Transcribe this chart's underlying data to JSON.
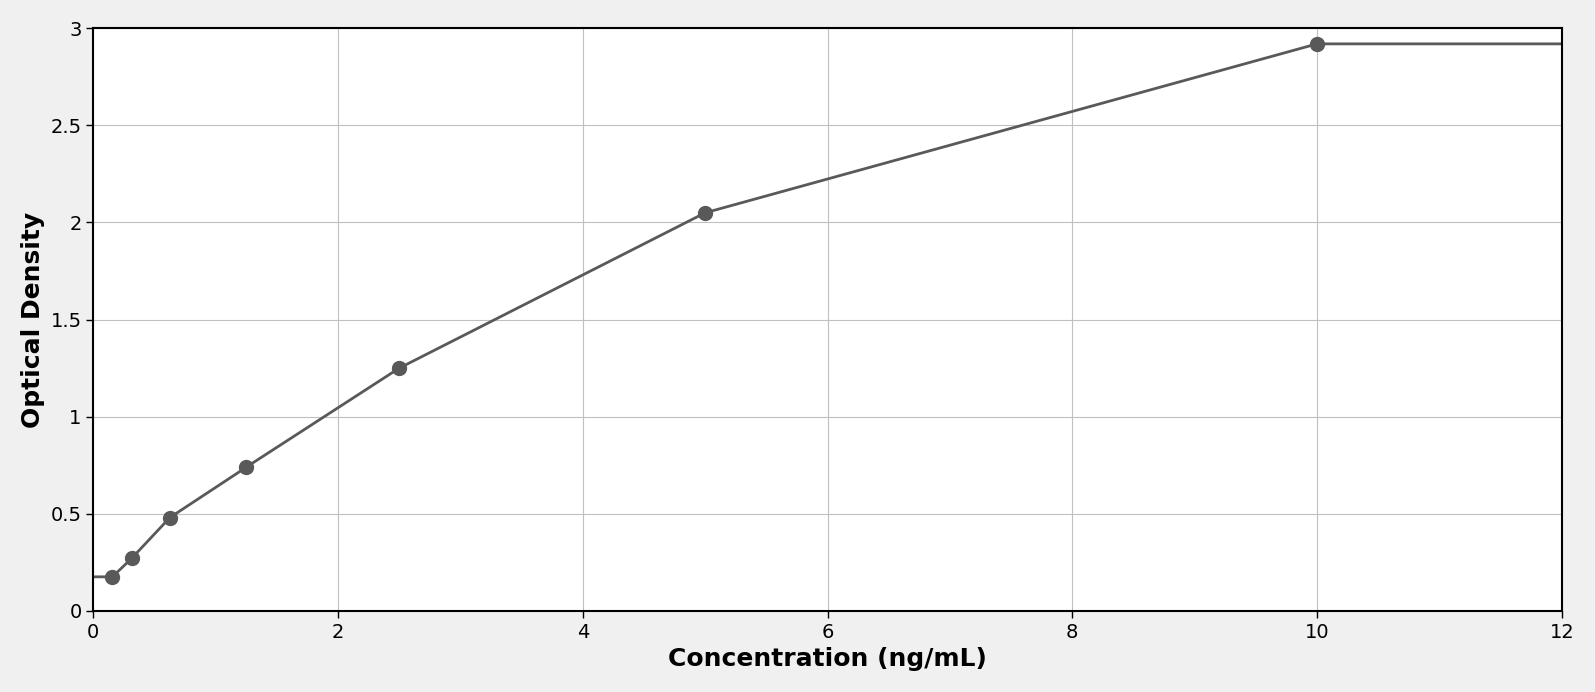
{
  "x_data": [
    0.156,
    0.313,
    0.625,
    1.25,
    2.5,
    5.0,
    10.0
  ],
  "y_data": [
    0.175,
    0.27,
    0.48,
    0.74,
    1.25,
    2.05,
    2.92
  ],
  "xlabel": "Concentration (ng/mL)",
  "ylabel": "Optical Density",
  "xlim": [
    0,
    12
  ],
  "ylim": [
    0,
    3.0
  ],
  "xticks": [
    0,
    2,
    4,
    6,
    8,
    10,
    12
  ],
  "yticks": [
    0,
    0.5,
    1.0,
    1.5,
    2.0,
    2.5,
    3.0
  ],
  "data_color": "#595959",
  "line_color": "#595959",
  "grid_color": "#c0c0c0",
  "background_color": "#ffffff",
  "figure_background": "#f0f0f0",
  "marker_size": 10,
  "line_width": 2.0,
  "xlabel_fontsize": 18,
  "ylabel_fontsize": 18,
  "tick_fontsize": 14,
  "xlabel_fontweight": "bold",
  "ylabel_fontweight": "bold"
}
